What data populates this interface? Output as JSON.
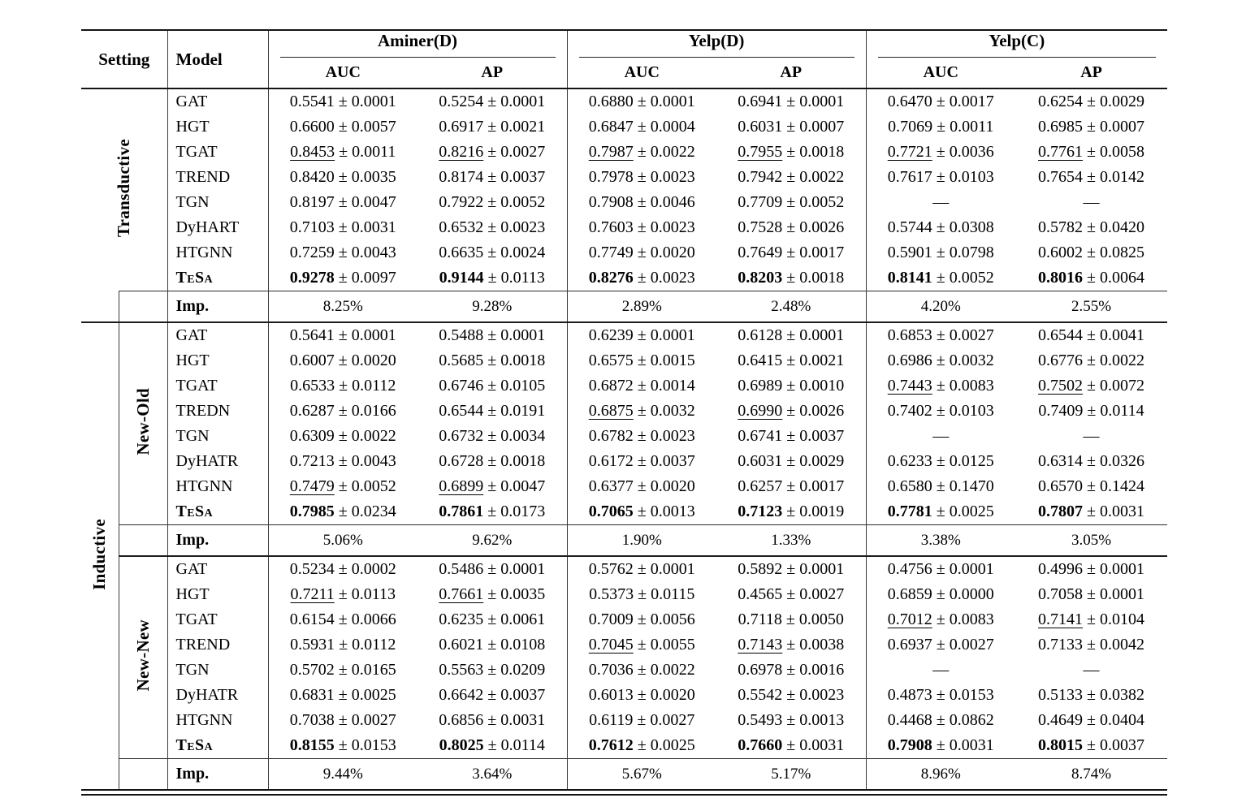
{
  "header": {
    "setting_label": "Setting",
    "model_label": "Model",
    "groups": [
      {
        "name": "Aminer(D)"
      },
      {
        "name": "Yelp(D)"
      },
      {
        "name": "Yelp(C)"
      }
    ],
    "metrics": [
      "AUC",
      "AP",
      "AUC",
      "AP",
      "AUC",
      "AP"
    ]
  },
  "imp_label": "Imp.",
  "missing_marker": "—",
  "colors": {
    "text": "#000000",
    "rule": "#141414",
    "background": "#ffffff"
  },
  "legend": {
    "bold_means": "best result",
    "underline_means": "second-best result"
  },
  "sections": [
    {
      "setting": "Transductive",
      "subsetting": "",
      "rows": [
        {
          "model": "GAT",
          "cells": [
            [
              "0.5541",
              "0.0001",
              "n"
            ],
            [
              "0.5254",
              "0.0001",
              "n"
            ],
            [
              "0.6880",
              "0.0001",
              "n"
            ],
            [
              "0.6941",
              "0.0001",
              "n"
            ],
            [
              "0.6470",
              "0.0017",
              "n"
            ],
            [
              "0.6254",
              "0.0029",
              "n"
            ]
          ]
        },
        {
          "model": "HGT",
          "cells": [
            [
              "0.6600",
              "0.0057",
              "n"
            ],
            [
              "0.6917",
              "0.0021",
              "n"
            ],
            [
              "0.6847",
              "0.0004",
              "n"
            ],
            [
              "0.6031",
              "0.0007",
              "n"
            ],
            [
              "0.7069",
              "0.0011",
              "n"
            ],
            [
              "0.6985",
              "0.0007",
              "n"
            ]
          ]
        },
        {
          "model": "TGAT",
          "cells": [
            [
              "0.8453",
              "0.0011",
              "u"
            ],
            [
              "0.8216",
              "0.0027",
              "u"
            ],
            [
              "0.7987",
              "0.0022",
              "u"
            ],
            [
              "0.7955",
              "0.0018",
              "u"
            ],
            [
              "0.7721",
              "0.0036",
              "u"
            ],
            [
              "0.7761",
              "0.0058",
              "u"
            ]
          ]
        },
        {
          "model": "TREND",
          "cells": [
            [
              "0.8420",
              "0.0035",
              "n"
            ],
            [
              "0.8174",
              "0.0037",
              "n"
            ],
            [
              "0.7978",
              "0.0023",
              "n"
            ],
            [
              "0.7942",
              "0.0022",
              "n"
            ],
            [
              "0.7617",
              "0.0103",
              "n"
            ],
            [
              "0.7654",
              "0.0142",
              "n"
            ]
          ]
        },
        {
          "model": "TGN",
          "cells": [
            [
              "0.8197",
              "0.0047",
              "n"
            ],
            [
              "0.7922",
              "0.0052",
              "n"
            ],
            [
              "0.7908",
              "0.0046",
              "n"
            ],
            [
              "0.7709",
              "0.0052",
              "n"
            ],
            [
              "",
              "",
              "d"
            ],
            [
              "",
              "",
              "d"
            ]
          ]
        },
        {
          "model": "DyHART",
          "cells": [
            [
              "0.7103",
              "0.0031",
              "n"
            ],
            [
              "0.6532",
              "0.0023",
              "n"
            ],
            [
              "0.7603",
              "0.0023",
              "n"
            ],
            [
              "0.7528",
              "0.0026",
              "n"
            ],
            [
              "0.5744",
              "0.0308",
              "n"
            ],
            [
              "0.5782",
              "0.0420",
              "n"
            ]
          ]
        },
        {
          "model": "HTGNN",
          "cells": [
            [
              "0.7259",
              "0.0043",
              "n"
            ],
            [
              "0.6635",
              "0.0024",
              "n"
            ],
            [
              "0.7749",
              "0.0020",
              "n"
            ],
            [
              "0.7649",
              "0.0017",
              "n"
            ],
            [
              "0.5901",
              "0.0798",
              "n"
            ],
            [
              "0.6002",
              "0.0825",
              "n"
            ]
          ]
        },
        {
          "model": "TeSa",
          "cells": [
            [
              "0.9278",
              "0.0097",
              "b"
            ],
            [
              "0.9144",
              "0.0113",
              "b"
            ],
            [
              "0.8276",
              "0.0023",
              "b"
            ],
            [
              "0.8203",
              "0.0018",
              "b"
            ],
            [
              "0.8141",
              "0.0052",
              "b"
            ],
            [
              "0.8016",
              "0.0064",
              "b"
            ]
          ]
        }
      ],
      "imp": [
        "8.25%",
        "9.28%",
        "2.89%",
        "2.48%",
        "4.20%",
        "2.55%"
      ]
    },
    {
      "setting": "Inductive",
      "subsetting": "New-Old",
      "rows": [
        {
          "model": "GAT",
          "cells": [
            [
              "0.5641",
              "0.0001",
              "n"
            ],
            [
              "0.5488",
              "0.0001",
              "n"
            ],
            [
              "0.6239",
              "0.0001",
              "n"
            ],
            [
              "0.6128",
              "0.0001",
              "n"
            ],
            [
              "0.6853",
              "0.0027",
              "n"
            ],
            [
              "0.6544",
              "0.0041",
              "n"
            ]
          ]
        },
        {
          "model": "HGT",
          "cells": [
            [
              "0.6007",
              "0.0020",
              "n"
            ],
            [
              "0.5685",
              "0.0018",
              "n"
            ],
            [
              "0.6575",
              "0.0015",
              "n"
            ],
            [
              "0.6415",
              "0.0021",
              "n"
            ],
            [
              "0.6986",
              "0.0032",
              "n"
            ],
            [
              "0.6776",
              "0.0022",
              "n"
            ]
          ]
        },
        {
          "model": "TGAT",
          "cells": [
            [
              "0.6533",
              "0.0112",
              "n"
            ],
            [
              "0.6746",
              "0.0105",
              "n"
            ],
            [
              "0.6872",
              "0.0014",
              "n"
            ],
            [
              "0.6989",
              "0.0010",
              "n"
            ],
            [
              "0.7443",
              "0.0083",
              "u"
            ],
            [
              "0.7502",
              "0.0072",
              "u"
            ]
          ]
        },
        {
          "model": "TREDN",
          "cells": [
            [
              "0.6287",
              "0.0166",
              "n"
            ],
            [
              "0.6544",
              "0.0191",
              "n"
            ],
            [
              "0.6875",
              "0.0032",
              "u"
            ],
            [
              "0.6990",
              "0.0026",
              "u"
            ],
            [
              "0.7402",
              "0.0103",
              "n"
            ],
            [
              "0.7409",
              "0.0114",
              "n"
            ]
          ]
        },
        {
          "model": "TGN",
          "cells": [
            [
              "0.6309",
              "0.0022",
              "n"
            ],
            [
              "0.6732",
              "0.0034",
              "n"
            ],
            [
              "0.6782",
              "0.0023",
              "n"
            ],
            [
              "0.6741",
              "0.0037",
              "n"
            ],
            [
              "",
              "",
              "d"
            ],
            [
              "",
              "",
              "d"
            ]
          ]
        },
        {
          "model": "DyHATR",
          "cells": [
            [
              "0.7213",
              "0.0043",
              "n"
            ],
            [
              "0.6728",
              "0.0018",
              "n"
            ],
            [
              "0.6172",
              "0.0037",
              "n"
            ],
            [
              "0.6031",
              "0.0029",
              "n"
            ],
            [
              "0.6233",
              "0.0125",
              "n"
            ],
            [
              "0.6314",
              "0.0326",
              "n"
            ]
          ]
        },
        {
          "model": "HTGNN",
          "cells": [
            [
              "0.7479",
              "0.0052",
              "u"
            ],
            [
              "0.6899",
              "0.0047",
              "u"
            ],
            [
              "0.6377",
              "0.0020",
              "n"
            ],
            [
              "0.6257",
              "0.0017",
              "n"
            ],
            [
              "0.6580",
              "0.1470",
              "n"
            ],
            [
              "0.6570",
              "0.1424",
              "n"
            ]
          ]
        },
        {
          "model": "TeSa",
          "cells": [
            [
              "0.7985",
              "0.0234",
              "b"
            ],
            [
              "0.7861",
              "0.0173",
              "b"
            ],
            [
              "0.7065",
              "0.0013",
              "b"
            ],
            [
              "0.7123",
              "0.0019",
              "b"
            ],
            [
              "0.7781",
              "0.0025",
              "b"
            ],
            [
              "0.7807",
              "0.0031",
              "b"
            ]
          ]
        }
      ],
      "imp": [
        "5.06%",
        "9.62%",
        "1.90%",
        "1.33%",
        "3.38%",
        "3.05%"
      ]
    },
    {
      "setting": "Inductive",
      "subsetting": "New-New",
      "rows": [
        {
          "model": "GAT",
          "cells": [
            [
              "0.5234",
              "0.0002",
              "n"
            ],
            [
              "0.5486",
              "0.0001",
              "n"
            ],
            [
              "0.5762",
              "0.0001",
              "n"
            ],
            [
              "0.5892",
              "0.0001",
              "n"
            ],
            [
              "0.4756",
              "0.0001",
              "n"
            ],
            [
              "0.4996",
              "0.0001",
              "n"
            ]
          ]
        },
        {
          "model": "HGT",
          "cells": [
            [
              "0.7211",
              "0.0113",
              "u"
            ],
            [
              "0.7661",
              "0.0035",
              "u"
            ],
            [
              "0.5373",
              "0.0115",
              "n"
            ],
            [
              "0.4565",
              "0.0027",
              "n"
            ],
            [
              "0.6859",
              "0.0000",
              "n"
            ],
            [
              "0.7058",
              "0.0001",
              "n"
            ]
          ]
        },
        {
          "model": "TGAT",
          "cells": [
            [
              "0.6154",
              "0.0066",
              "n"
            ],
            [
              "0.6235",
              "0.0061",
              "n"
            ],
            [
              "0.7009",
              "0.0056",
              "n"
            ],
            [
              "0.7118",
              "0.0050",
              "n"
            ],
            [
              "0.7012",
              "0.0083",
              "u"
            ],
            [
              "0.7141",
              "0.0104",
              "u"
            ]
          ]
        },
        {
          "model": "TREND",
          "cells": [
            [
              "0.5931",
              "0.0112",
              "n"
            ],
            [
              "0.6021",
              "0.0108",
              "n"
            ],
            [
              "0.7045",
              "0.0055",
              "u"
            ],
            [
              "0.7143",
              "0.0038",
              "u"
            ],
            [
              "0.6937",
              "0.0027",
              "n"
            ],
            [
              "0.7133",
              "0.0042",
              "n"
            ]
          ]
        },
        {
          "model": "TGN",
          "cells": [
            [
              "0.5702",
              "0.0165",
              "n"
            ],
            [
              "0.5563",
              "0.0209",
              "n"
            ],
            [
              "0.7036",
              "0.0022",
              "n"
            ],
            [
              "0.6978",
              "0.0016",
              "n"
            ],
            [
              "",
              "",
              "d"
            ],
            [
              "",
              "",
              "d"
            ]
          ]
        },
        {
          "model": "DyHATR",
          "cells": [
            [
              "0.6831",
              "0.0025",
              "n"
            ],
            [
              "0.6642",
              "0.0037",
              "n"
            ],
            [
              "0.6013",
              "0.0020",
              "n"
            ],
            [
              "0.5542",
              "0.0023",
              "n"
            ],
            [
              "0.4873",
              "0.0153",
              "n"
            ],
            [
              "0.5133",
              "0.0382",
              "n"
            ]
          ]
        },
        {
          "model": "HTGNN",
          "cells": [
            [
              "0.7038",
              "0.0027",
              "n"
            ],
            [
              "0.6856",
              "0.0031",
              "n"
            ],
            [
              "0.6119",
              "0.0027",
              "n"
            ],
            [
              "0.5493",
              "0.0013",
              "n"
            ],
            [
              "0.4468",
              "0.0862",
              "n"
            ],
            [
              "0.4649",
              "0.0404",
              "n"
            ]
          ]
        },
        {
          "model": "TeSa",
          "cells": [
            [
              "0.8155",
              "0.0153",
              "b"
            ],
            [
              "0.8025",
              "0.0114",
              "b"
            ],
            [
              "0.7612",
              "0.0025",
              "b"
            ],
            [
              "0.7660",
              "0.0031",
              "b"
            ],
            [
              "0.7908",
              "0.0031",
              "b"
            ],
            [
              "0.8015",
              "0.0037",
              "b"
            ]
          ]
        }
      ],
      "imp": [
        "9.44%",
        "3.64%",
        "5.67%",
        "5.17%",
        "8.96%",
        "8.74%"
      ]
    }
  ]
}
